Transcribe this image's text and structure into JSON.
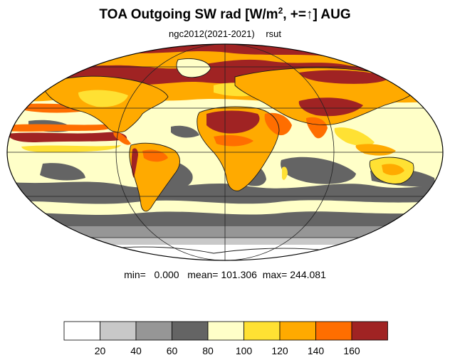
{
  "title": {
    "main": "TOA Outgoing SW rad [W/m",
    "exp": "2",
    "tail_pre": ", +=",
    "arrow": "↑",
    "tail_post": "] AUG"
  },
  "subtitle": {
    "experiment": "ngc2012(2021-2021)",
    "variable": "rsut"
  },
  "stats": {
    "min_label": "min=",
    "min": "0.000",
    "mean_label": "mean=",
    "mean": "101.306",
    "max_label": "max=",
    "max": "244.081"
  },
  "colorbar": {
    "levels": [
      20,
      40,
      60,
      80,
      100,
      120,
      140,
      160
    ],
    "colors": [
      "#ffffff",
      "#c8c8c8",
      "#969696",
      "#646464",
      "#ffffc8",
      "#ffe133",
      "#ffaa00",
      "#ff6e00",
      "#a02323"
    ]
  },
  "map": {
    "projection": "mollweide",
    "background_color": "#ffffc8",
    "colors": {
      "dark_red": "#a02323",
      "orange_red": "#ff6e00",
      "orange": "#ffaa00",
      "yellow": "#ffe133",
      "pale_yellow": "#ffffc8",
      "dark_gray": "#646464",
      "mid_gray": "#969696",
      "light_gray": "#c8c8c8",
      "white": "#ffffff"
    }
  }
}
